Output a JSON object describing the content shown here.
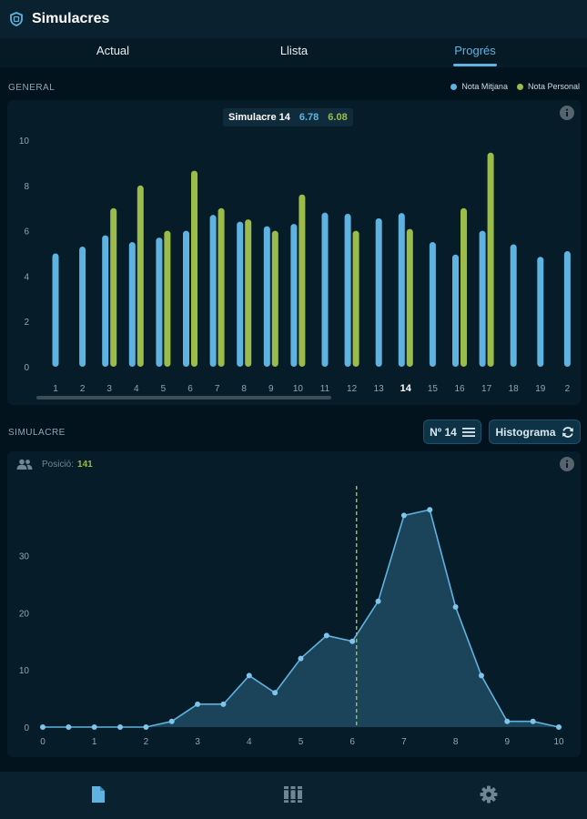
{
  "app": {
    "title": "Simulacres"
  },
  "tabs": [
    {
      "label": "Actual",
      "active": false
    },
    {
      "label": "Llista",
      "active": false
    },
    {
      "label": "Progrés",
      "active": true
    }
  ],
  "general": {
    "section_label": "GENERAL",
    "legend": [
      {
        "label": "Nota Mitjana",
        "color": "#5fb3e0"
      },
      {
        "label": "Nota Personal",
        "color": "#9bbb4a"
      }
    ],
    "tooltip": {
      "title": "Simulacre 14",
      "mitjana": "6.78",
      "personal": "6.08"
    },
    "selected_label": "14"
  },
  "simulacre": {
    "section_label": "SIMULACRE",
    "number_button": "Nº 14",
    "histogram_button": "Histograma",
    "position_label": "Posició:",
    "position_value": "141"
  },
  "bottom_nav": [
    "document-icon",
    "books-icon",
    "settings-icon"
  ],
  "chart_data": [
    {
      "type": "bar",
      "categories": [
        "1",
        "2",
        "3",
        "4",
        "5",
        "6",
        "7",
        "8",
        "9",
        "10",
        "11",
        "12",
        "13",
        "14",
        "15",
        "16",
        "17",
        "18",
        "19",
        "2"
      ],
      "series": [
        {
          "name": "Nota Mitjana",
          "color": "#5fb3e0",
          "values": [
            5.0,
            5.3,
            5.8,
            5.5,
            5.7,
            6.0,
            6.7,
            6.4,
            6.2,
            6.3,
            6.8,
            6.75,
            6.55,
            6.78,
            5.5,
            4.95,
            6.0,
            5.4,
            4.85,
            5.1
          ]
        },
        {
          "name": "Nota Personal",
          "color": "#9bbb4a",
          "values": [
            null,
            null,
            7.0,
            8.0,
            6.0,
            8.65,
            7.0,
            6.5,
            6.0,
            7.6,
            null,
            6.0,
            null,
            6.08,
            null,
            7.0,
            9.45,
            null,
            null,
            null
          ]
        }
      ],
      "y_ticks": [
        0,
        2,
        4,
        6,
        8,
        10
      ],
      "ylim": [
        0,
        10
      ],
      "grid": false,
      "legend": "top-right"
    },
    {
      "type": "area",
      "x": [
        0,
        0.5,
        1,
        1.5,
        2,
        2.5,
        3,
        3.5,
        4,
        4.5,
        5,
        5.5,
        6,
        6.5,
        7,
        7.5,
        8,
        8.5,
        9,
        9.5,
        10
      ],
      "y": [
        0,
        0,
        0,
        0,
        0,
        1,
        4,
        4,
        9,
        6,
        12,
        16,
        15,
        22,
        37,
        38,
        21,
        9,
        1,
        1,
        0
      ],
      "x_ticks": [
        0,
        1,
        2,
        3,
        4,
        5,
        6,
        7,
        8,
        9,
        10
      ],
      "y_ticks": [
        0,
        10,
        20,
        30
      ],
      "xlim": [
        0,
        10
      ],
      "ylim": [
        0,
        42
      ],
      "marker_x": 6.08,
      "color": "#5fb3e0",
      "marker_color": "#9bbb4a"
    }
  ]
}
